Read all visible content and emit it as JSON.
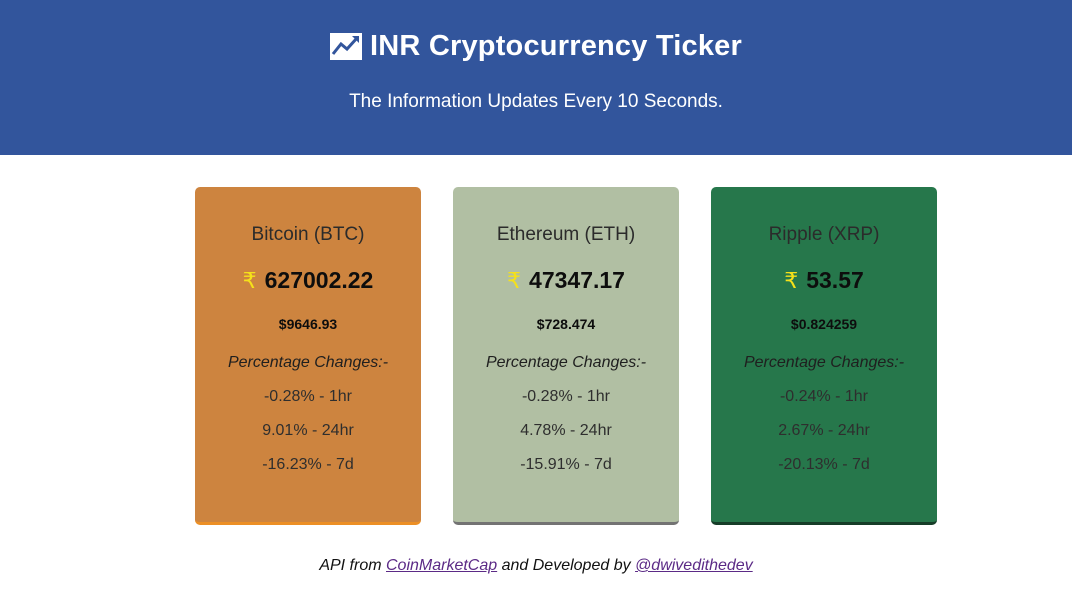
{
  "header": {
    "icon": "line-chart-icon",
    "title": "INR Cryptocurrency Ticker",
    "subtitle": "The Information Updates Every 10 Seconds."
  },
  "cards": [
    {
      "name": "Bitcoin (BTC)",
      "currency_symbol": "₹",
      "inr": "627002.22",
      "usd": "$9646.93",
      "pct_title": "Percentage Changes:-",
      "changes": [
        "-0.28% - 1hr",
        "9.01% - 24hr",
        "-16.23% - 7d"
      ],
      "bg_color": "#cd843f",
      "border_color": "#ec8f25"
    },
    {
      "name": "Ethereum (ETH)",
      "currency_symbol": "₹",
      "inr": "47347.17",
      "usd": "$728.474",
      "pct_title": "Percentage Changes:-",
      "changes": [
        "-0.28% - 1hr",
        "4.78% - 24hr",
        "-15.91% - 7d"
      ],
      "bg_color": "#b1bfa3",
      "border_color": "#737373"
    },
    {
      "name": "Ripple (XRP)",
      "currency_symbol": "₹",
      "inr": "53.57",
      "usd": "$0.824259",
      "pct_title": "Percentage Changes:-",
      "changes": [
        "-0.24% - 1hr",
        "2.67% - 24hr",
        "-20.13% - 7d"
      ],
      "bg_color": "#26774b",
      "border_color": "#163d28"
    }
  ],
  "footer": {
    "prefix": "API from",
    "link1": "CoinMarketCap",
    "middle": "and Developed by",
    "link2": "@dwivedithedev"
  }
}
